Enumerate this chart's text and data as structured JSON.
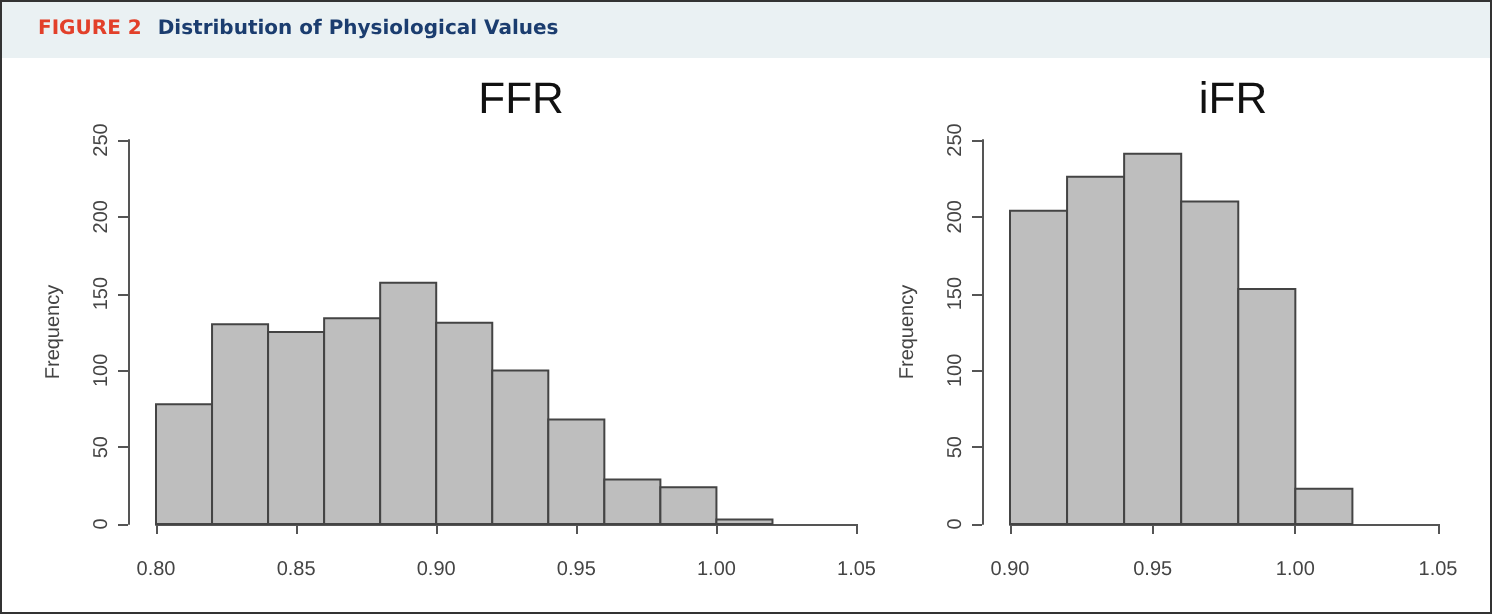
{
  "chart_data": [
    {
      "type": "histogram",
      "title": "FFR",
      "ylabel": "Frequency",
      "annotations": [
        "FIGURE 2",
        "Distribution of Physiological Values"
      ],
      "bins": [
        0.8,
        0.82,
        0.84,
        0.86,
        0.88,
        0.9,
        0.92,
        0.94,
        0.96,
        0.98,
        1.0,
        1.02
      ],
      "values": [
        78,
        130,
        125,
        134,
        157,
        131,
        100,
        68,
        29,
        24,
        3
      ],
      "color": "#bebebe",
      "xlim": [
        0.8,
        1.05
      ],
      "xticks": [
        {
          "value": 0.8,
          "label": "0.80"
        },
        {
          "value": 0.85,
          "label": "0.85"
        },
        {
          "value": 0.9,
          "label": "0.90"
        },
        {
          "value": 0.95,
          "label": "0.95"
        },
        {
          "value": 1.0,
          "label": "1.00"
        },
        {
          "value": 1.05,
          "label": "1.05"
        }
      ],
      "ylim": [
        0,
        250
      ],
      "yticks": [
        0,
        50,
        100,
        150,
        200,
        250
      ],
      "grid": false
    },
    {
      "type": "histogram",
      "title": "iFR",
      "ylabel": "Frequency",
      "bins": [
        0.9,
        0.92,
        0.94,
        0.96,
        0.98,
        1.0,
        1.02
      ],
      "values": [
        204,
        226,
        241,
        210,
        153,
        23
      ],
      "color": "#bebebe",
      "xlim": [
        0.9,
        1.05
      ],
      "xticks": [
        {
          "value": 0.9,
          "label": "0.90"
        },
        {
          "value": 0.95,
          "label": "0.95"
        },
        {
          "value": 1.0,
          "label": "1.00"
        },
        {
          "value": 1.05,
          "label": "1.05"
        }
      ],
      "ylim": [
        0,
        250
      ],
      "yticks": [
        0,
        50,
        100,
        150,
        200,
        250
      ],
      "grid": false
    }
  ]
}
